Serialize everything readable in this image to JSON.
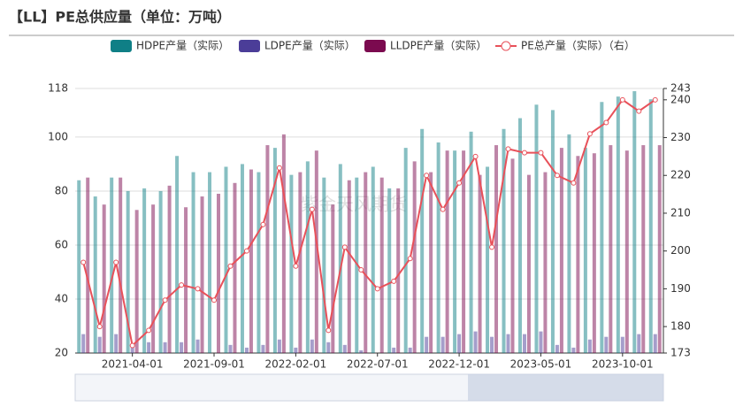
{
  "chart_data": {
    "type": "bar",
    "title": "【LL】PE总供应量（单位：万吨）",
    "watermark": "紫金天风期货",
    "categories": [
      null,
      null,
      null,
      "2021-04-01",
      null,
      null,
      null,
      null,
      "2021-09-01",
      null,
      null,
      null,
      null,
      "2022-02-01",
      null,
      null,
      null,
      null,
      "2022-07-01",
      null,
      null,
      null,
      null,
      "2022-12-01",
      null,
      null,
      null,
      null,
      "2023-05-01",
      null,
      null,
      null,
      null,
      "2023-10-01",
      null,
      null
    ],
    "series": [
      {
        "name": "HDPE产量（实际）",
        "color": "#0f7f86",
        "values": [
          84,
          78,
          85,
          80,
          81,
          80,
          93,
          87,
          87,
          89,
          90,
          87,
          96,
          86,
          91,
          85,
          90,
          85,
          89,
          81,
          96,
          103,
          98,
          95,
          102,
          89,
          103,
          107,
          112,
          110,
          101,
          96,
          113,
          115,
          117,
          114
        ]
      },
      {
        "name": "LDPE产量（实际）",
        "color": "#4b3d98",
        "values": [
          27,
          26,
          27,
          23,
          24,
          24,
          24,
          25,
          20,
          23,
          22,
          23,
          25,
          22,
          25,
          24,
          23,
          21,
          20,
          22,
          22,
          26,
          26,
          27,
          28,
          26,
          27,
          27,
          28,
          23,
          22,
          25,
          26,
          26,
          27,
          27
        ]
      },
      {
        "name": "LLDPE产量（实际）",
        "color": "#7b0a4f",
        "values": [
          85,
          75,
          85,
          73,
          75,
          82,
          74,
          78,
          79,
          83,
          88,
          97,
          101,
          87,
          95,
          75,
          84,
          87,
          85,
          81,
          91,
          87,
          95,
          95,
          86,
          97,
          92,
          86,
          87,
          96,
          93,
          94,
          97,
          95,
          97,
          97
        ]
      },
      {
        "name": "PE总产量（实际）（右）",
        "color": "#e8515a",
        "type": "line",
        "axis": "y2",
        "values": [
          197,
          180,
          197,
          175,
          179,
          187,
          191,
          190,
          187,
          196,
          200,
          207,
          222,
          196,
          211,
          179,
          201,
          195,
          190,
          192,
          198,
          220,
          211,
          218,
          225,
          201,
          227,
          226,
          226,
          220,
          218,
          231,
          234,
          240,
          237,
          240
        ]
      }
    ],
    "ylim": [
      20,
      118
    ],
    "yticks": [
      20,
      40,
      60,
      80,
      100,
      118
    ],
    "y2lim": [
      173,
      243
    ],
    "y2ticks": [
      173,
      180,
      190,
      200,
      210,
      220,
      230,
      240,
      243
    ],
    "grid": true
  }
}
